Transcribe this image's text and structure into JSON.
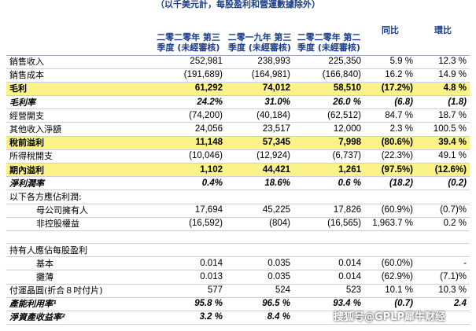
{
  "caption": "（以千美元計，每股盈利和營運數據除外）",
  "headers": {
    "q3_2020": "二零二零年 第三季度 (未經審核)",
    "q3_2019": "二零一九年 第三季度 (未經審核)",
    "q2_2020": "二零二零年 第二季度 (未經審核)",
    "yoy": "同比",
    "qoq": "環比"
  },
  "rows": [
    {
      "label": "銷售收入",
      "v": [
        "252,981",
        "238,993",
        "225,350",
        "5.9 %",
        "12.3 %"
      ]
    },
    {
      "label": "銷售成本",
      "v": [
        "(191,689)",
        "(164,981)",
        "(166,840)",
        "16.2 %",
        "14.9 %"
      ]
    },
    {
      "label": "毛利",
      "v": [
        "61,292",
        "74,012",
        "58,510",
        "(17.2%)",
        "4.8 %"
      ]
    },
    {
      "label": "毛利率",
      "v": [
        "24.2%",
        "31.0%",
        "26.0 %",
        "(6.8)",
        "(1.8)"
      ]
    },
    {
      "label": "經營開支",
      "v": [
        "(74,200)",
        "(40,184)",
        "(62,512)",
        "84.7 %",
        "18.7 %"
      ]
    },
    {
      "label": "其他收入淨額",
      "v": [
        "24,056",
        "23,517",
        "12,000",
        "2.3 %",
        "100.5 %"
      ]
    },
    {
      "label": "稅前溢利",
      "v": [
        "11,148",
        "57,345",
        "7,998",
        "(80.6%)",
        "39.4 %"
      ]
    },
    {
      "label": "所得稅開支",
      "v": [
        "(10,046)",
        "(12,924)",
        "(6,737)",
        "(22.3%)",
        "49.1 %"
      ]
    },
    {
      "label": "期內溢利",
      "v": [
        "1,102",
        "44,421",
        "1,261",
        "(97.5%)",
        "(12.6%)"
      ]
    },
    {
      "label": "淨利潤率",
      "v": [
        "0.4%",
        "18.6%",
        "0.6 %",
        "(18.2)",
        "(0.2)"
      ]
    },
    {
      "label": "以下各方應佔利潤:",
      "v": [
        "",
        "",
        "",
        "",
        ""
      ]
    },
    {
      "label": "母公司擁有人",
      "v": [
        "17,694",
        "45,225",
        "17,826",
        "(60.9%)",
        "(0.7)%"
      ]
    },
    {
      "label": "非控股權益",
      "v": [
        "(16,592)",
        "(804)",
        "(16,565)",
        "1,963.7 %",
        "0.2 %"
      ]
    },
    {
      "label": "",
      "v": [
        "",
        "",
        "",
        "",
        ""
      ]
    },
    {
      "label": "持有人應佔每股盈利",
      "v": [
        "",
        "",
        "",
        "",
        ""
      ]
    },
    {
      "label": "基本",
      "v": [
        "0.014",
        "0.035",
        "0.014",
        "(60.0%)",
        "-"
      ]
    },
    {
      "label": "攤薄",
      "v": [
        "0.013",
        "0.035",
        "0.014",
        "(62.9%)",
        "(7.1)%"
      ]
    },
    {
      "label": "付運晶圓(折合８吋付片)",
      "v": [
        "577",
        "524",
        "523",
        "10.1 %",
        "10.3 %"
      ]
    },
    {
      "label": "產能利用率¹",
      "v": [
        "95.8 %",
        "96.5 %",
        "93.4 %",
        "(0.7)",
        "2.4"
      ]
    },
    {
      "label": "淨資產收益率²",
      "v": [
        "3.2 %",
        "8.4 %",
        "3",
        "",
        ""
      ]
    }
  ],
  "watermark": "搜狐号@GPLP犀牛财经"
}
